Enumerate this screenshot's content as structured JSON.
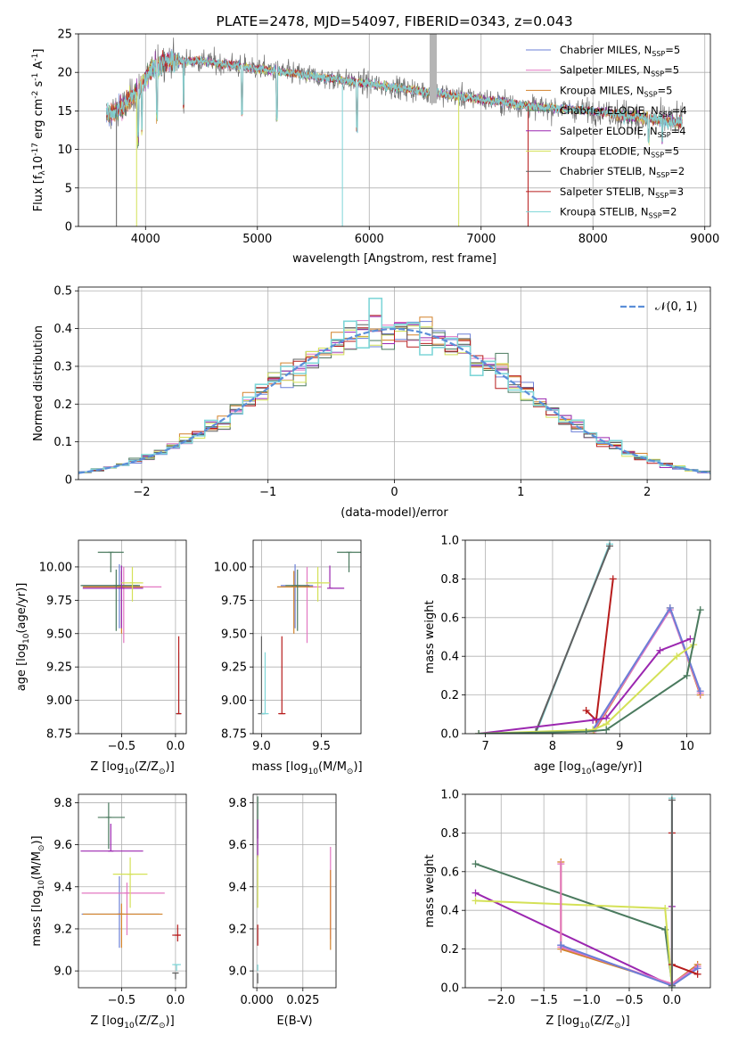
{
  "series_names": [
    "Chabrier MILES, N",
    "Salpeter MILES, N",
    "Kroupa MILES, N",
    "Chabrier ELODIE, N",
    "Salpeter ELODIE, N",
    "Kroupa ELODIE, N",
    "Chabrier STELIB, N",
    "Salpeter STELIB, N",
    "Kroupa STELIB, N"
  ],
  "legend_sub": "SSP",
  "legend_n": [
    "=5",
    "=5",
    "=5",
    "=4",
    "=4",
    "=5",
    "=2",
    "=3",
    "=2"
  ],
  "colors": [
    "#6b7fd7",
    "#e377c2",
    "#d2822b",
    "#4a7a5e",
    "#9b27b0",
    "#d4e157",
    "#606060",
    "#b71c1c",
    "#7fd6d8"
  ],
  "chart_data": [
    {
      "id": "spectrum",
      "type": "line",
      "title": "PLATE=2478, MJD=54097, FIBERID=0343, z=0.043",
      "xlabel": "wavelength [Angstrom, rest frame]",
      "ylabel_parts": [
        "Flux [f",
        "λ",
        "10",
        "-17",
        " erg cm",
        "-2",
        " s",
        "-1",
        " A",
        "-1",
        "]"
      ],
      "xlim": [
        3400,
        9050
      ],
      "ylim": [
        0,
        25
      ],
      "xticks": [
        4000,
        5000,
        6000,
        7000,
        8000,
        9000
      ],
      "yticks": [
        0,
        5,
        10,
        15,
        20,
        25
      ],
      "continuum": [
        [
          3650,
          14.5
        ],
        [
          3800,
          15.5
        ],
        [
          3950,
          18
        ],
        [
          4050,
          20.5
        ],
        [
          4200,
          21.5
        ],
        [
          4500,
          21.5
        ],
        [
          5000,
          20.5
        ],
        [
          5500,
          19.5
        ],
        [
          6000,
          18.5
        ],
        [
          6500,
          17.5
        ],
        [
          7000,
          16.5
        ],
        [
          7500,
          15.5
        ],
        [
          8000,
          15
        ],
        [
          8500,
          14
        ],
        [
          8800,
          13.5
        ]
      ],
      "dropouts": [
        {
          "x": 3740,
          "series": 6
        },
        {
          "x": 3920,
          "series": 5
        },
        {
          "x": 5760,
          "series": 8
        },
        {
          "x": 6800,
          "series": 5
        },
        {
          "x": 7420,
          "series": 7
        }
      ]
    },
    {
      "id": "residuals",
      "type": "histogram",
      "xlabel": "(data-model)/error",
      "ylabel": "Normed distribution",
      "xlim": [
        -2.5,
        2.5
      ],
      "ylim": [
        0,
        0.51
      ],
      "xticks": [
        -2,
        -1,
        0,
        1,
        2
      ],
      "yticks": [
        0,
        0.1,
        0.2,
        0.3,
        0.4,
        0.5
      ],
      "legend_gauss": "𝒩(0, 1)",
      "bin_width": 0.1
    },
    {
      "id": "age-vs-z",
      "type": "errorbar",
      "xlabel": "Z [log",
      "xlabel_sub": "10",
      "xlabel_rest": "(Z/Z",
      "xlabel_end": ")]",
      "ylabel": "age  [log",
      "ylabel_sub": "10",
      "ylabel_rest": "(age/yr)]",
      "xlim": [
        -0.9,
        0.1
      ],
      "ylim": [
        8.75,
        10.2
      ],
      "xticks": [
        -0.5,
        0.0
      ],
      "yticks": [
        8.75,
        9.0,
        9.25,
        9.5,
        9.75,
        10.0
      ],
      "points": [
        {
          "s": 0,
          "x": -0.52,
          "y": 9.86,
          "xerr": [
            0.35,
            0.17
          ],
          "yerr": [
            0.32,
            0.16
          ]
        },
        {
          "s": 1,
          "x": -0.48,
          "y": 9.85,
          "xerr": [
            0.37,
            0.35
          ],
          "yerr": [
            0.42,
            0.15
          ]
        },
        {
          "s": 2,
          "x": -0.5,
          "y": 9.85,
          "xerr": [
            0.36,
            0.2
          ],
          "yerr": [
            0.35,
            0.12
          ]
        },
        {
          "s": 3,
          "x": -0.55,
          "y": 9.86,
          "xerr": [
            0.33,
            0.22
          ],
          "yerr": [
            0.34,
            0.12
          ]
        },
        {
          "s": 4,
          "x": -0.5,
          "y": 9.84,
          "xerr": [
            0.36,
            0.2
          ],
          "yerr": [
            0.3,
            0.17
          ]
        },
        {
          "s": 5,
          "x": -0.4,
          "y": 9.88,
          "xerr": [
            0.1,
            0.1
          ],
          "yerr": [
            0.14,
            0.12
          ]
        },
        {
          "s": 3,
          "x": -0.6,
          "y": 10.11,
          "xerr": [
            0.12,
            0.12
          ],
          "yerr": [
            0.15,
            0.0
          ]
        },
        {
          "s": 8,
          "x": 0.03,
          "y": 8.9,
          "xerr": [
            0.03,
            0.02
          ],
          "yerr": [
            0.0,
            0.46
          ]
        },
        {
          "s": 7,
          "x": 0.03,
          "y": 8.9,
          "xerr": [
            0.02,
            0.02
          ],
          "yerr": [
            0.0,
            0.58
          ]
        }
      ]
    },
    {
      "id": "age-vs-mass",
      "type": "errorbar",
      "xlabel": "mass [log",
      "xlabel_sub": "10",
      "xlabel_rest": "(M/M",
      "xlabel_end": ")]",
      "xlim": [
        8.93,
        9.83
      ],
      "ylim": [
        8.75,
        10.2
      ],
      "xticks": [
        9.0,
        9.5
      ],
      "yticks": [
        8.75,
        9.0,
        9.25,
        9.5,
        9.75,
        10.0
      ],
      "points": [
        {
          "s": 0,
          "x": 9.28,
          "y": 9.86,
          "xerr": [
            0.12,
            0.15
          ],
          "yerr": [
            0.32,
            0.16
          ]
        },
        {
          "s": 1,
          "x": 9.38,
          "y": 9.85,
          "xerr": [
            0.12,
            0.12
          ],
          "yerr": [
            0.42,
            0.15
          ]
        },
        {
          "s": 2,
          "x": 9.27,
          "y": 9.85,
          "xerr": [
            0.14,
            0.16
          ],
          "yerr": [
            0.35,
            0.12
          ]
        },
        {
          "s": 3,
          "x": 9.3,
          "y": 9.86,
          "xerr": [
            0.1,
            0.1
          ],
          "yerr": [
            0.34,
            0.12
          ]
        },
        {
          "s": 4,
          "x": 9.57,
          "y": 9.84,
          "xerr": [
            0.0,
            0.12
          ],
          "yerr": [
            0.0,
            0.17
          ]
        },
        {
          "s": 5,
          "x": 9.47,
          "y": 9.88,
          "xerr": [
            0.1,
            0.1
          ],
          "yerr": [
            0.14,
            0.12
          ]
        },
        {
          "s": 3,
          "x": 9.73,
          "y": 10.11,
          "xerr": [
            0.1,
            0.1
          ],
          "yerr": [
            0.15,
            0.0
          ]
        },
        {
          "s": 6,
          "x": 9.0,
          "y": 8.9,
          "xerr": [
            0.03,
            0.03
          ],
          "yerr": [
            0.0,
            0.58
          ]
        },
        {
          "s": 8,
          "x": 9.03,
          "y": 8.9,
          "xerr": [
            0.03,
            0.03
          ],
          "yerr": [
            0.0,
            0.46
          ]
        },
        {
          "s": 7,
          "x": 9.17,
          "y": 8.9,
          "xerr": [
            0.03,
            0.03
          ],
          "yerr": [
            0.0,
            0.58
          ]
        }
      ]
    },
    {
      "id": "weight-vs-age",
      "type": "line",
      "xlabel": "age  [log",
      "xlabel_sub": "10",
      "xlabel_rest": "(age/yr)]",
      "ylabel": "mass weight",
      "xlim": [
        6.7,
        10.35
      ],
      "ylim": [
        0,
        1.0
      ],
      "xticks": [
        7,
        8,
        9,
        10
      ],
      "yticks": [
        0.0,
        0.2,
        0.4,
        0.6,
        0.8,
        1.0
      ],
      "lines": [
        {
          "s": 8,
          "x": [
            7.75,
            8.85
          ],
          "y": [
            0.0,
            0.98
          ]
        },
        {
          "s": 6,
          "x": [
            7.75,
            8.85
          ],
          "y": [
            0.01,
            0.97
          ]
        },
        {
          "s": 7,
          "x": [
            8.5,
            8.65,
            8.9
          ],
          "y": [
            0.12,
            0.07,
            0.8
          ]
        },
        {
          "s": 2,
          "x": [
            8.6,
            9.75,
            10.2
          ],
          "y": [
            0.0,
            0.65,
            0.2
          ]
        },
        {
          "s": 1,
          "x": [
            8.6,
            9.75,
            10.2
          ],
          "y": [
            0.01,
            0.64,
            0.21
          ]
        },
        {
          "s": 0,
          "x": [
            8.6,
            9.75,
            10.2
          ],
          "y": [
            0.02,
            0.65,
            0.22
          ]
        },
        {
          "s": 4,
          "x": [
            6.9,
            8.6,
            8.8,
            9.6,
            10.05
          ],
          "y": [
            0.0,
            0.07,
            0.08,
            0.43,
            0.49
          ]
        },
        {
          "s": 5,
          "x": [
            6.9,
            8.6,
            8.8,
            9.85,
            10.1
          ],
          "y": [
            0.0,
            0.02,
            0.05,
            0.4,
            0.46
          ]
        },
        {
          "s": 3,
          "x": [
            6.9,
            8.5,
            8.8,
            10.0,
            10.2
          ],
          "y": [
            0.0,
            0.01,
            0.02,
            0.3,
            0.64
          ]
        }
      ]
    },
    {
      "id": "mass-vs-z",
      "type": "errorbar",
      "xlabel": "Z [log",
      "xlabel_sub": "10",
      "xlabel_rest": "(Z/Z",
      "xlabel_end": ")]",
      "ylabel": "mass [log",
      "ylabel_sub": "10",
      "ylabel_rest": "(M/M",
      "ylabel_end": ")]",
      "xlim": [
        -0.9,
        0.1
      ],
      "ylim": [
        8.92,
        9.84
      ],
      "xticks": [
        -0.5,
        0.0
      ],
      "yticks": [
        9.0,
        9.2,
        9.4,
        9.6,
        9.8
      ],
      "points": [
        {
          "s": 0,
          "x": -0.52,
          "y": 9.27,
          "xerr": [
            0.35,
            0.37
          ],
          "yerr": [
            0.16,
            0.18
          ]
        },
        {
          "s": 1,
          "x": -0.45,
          "y": 9.37,
          "xerr": [
            0.42,
            0.35
          ],
          "yerr": [
            0.2,
            0.05
          ]
        },
        {
          "s": 2,
          "x": -0.5,
          "y": 9.27,
          "xerr": [
            0.36,
            0.38
          ],
          "yerr": [
            0.16,
            0.05
          ]
        },
        {
          "s": 3,
          "x": -0.62,
          "y": 9.73,
          "xerr": [
            0.1,
            0.15
          ],
          "yerr": [
            0.15,
            0.07
          ]
        },
        {
          "s": 4,
          "x": -0.6,
          "y": 9.57,
          "xerr": [
            0.28,
            0.3
          ],
          "yerr": [
            0.0,
            0.13
          ]
        },
        {
          "s": 5,
          "x": -0.42,
          "y": 9.46,
          "xerr": [
            0.16,
            0.16
          ],
          "yerr": [
            0.16,
            0.08
          ]
        },
        {
          "s": 7,
          "x": 0.02,
          "y": 9.17,
          "xerr": [
            0.05,
            0.03
          ],
          "yerr": [
            0.03,
            0.05
          ]
        },
        {
          "s": 8,
          "x": 0.01,
          "y": 9.03,
          "xerr": [
            0.04,
            0.04
          ],
          "yerr": [
            0.03,
            0.0
          ]
        },
        {
          "s": 6,
          "x": 0.0,
          "y": 8.99,
          "xerr": [
            0.03,
            0.03
          ],
          "yerr": [
            0.03,
            0.0
          ]
        }
      ]
    },
    {
      "id": "mass-vs-ebv",
      "type": "errorbar",
      "xlabel": "E(B-V)",
      "xlim": [
        -0.002,
        0.043
      ],
      "ylim": [
        8.92,
        9.84
      ],
      "xticks": [
        0.0,
        0.025
      ],
      "yticks": [
        9.0,
        9.2,
        9.4,
        9.6,
        9.8
      ],
      "points": [
        {
          "s": 3,
          "x": 0.0005,
          "y": 9.73,
          "xerr": [
            0,
            0
          ],
          "yerr": [
            0.1,
            0.1
          ]
        },
        {
          "s": 4,
          "x": 0.0005,
          "y": 9.62,
          "xerr": [
            0,
            0
          ],
          "yerr": [
            0.08,
            0.1
          ]
        },
        {
          "s": 5,
          "x": 0.0005,
          "y": 9.4,
          "xerr": [
            0,
            0
          ],
          "yerr": [
            0.1,
            0.15
          ]
        },
        {
          "s": 7,
          "x": 0.0005,
          "y": 9.17,
          "xerr": [
            0,
            0
          ],
          "yerr": [
            0.05,
            0.05
          ]
        },
        {
          "s": 8,
          "x": 0.0005,
          "y": 9.03,
          "xerr": [
            0,
            0
          ],
          "yerr": [
            0.03,
            0.0
          ]
        },
        {
          "s": 6,
          "x": 0.0005,
          "y": 8.99,
          "xerr": [
            0,
            0
          ],
          "yerr": [
            0.05,
            0.0
          ]
        },
        {
          "s": 1,
          "x": 0.04,
          "y": 9.37,
          "xerr": [
            0,
            0
          ],
          "yerr": [
            0.22,
            0.22
          ]
        },
        {
          "s": 2,
          "x": 0.04,
          "y": 9.3,
          "xerr": [
            0,
            0
          ],
          "yerr": [
            0.2,
            0.18
          ]
        }
      ]
    },
    {
      "id": "weight-vs-z",
      "type": "line",
      "xlabel": "Z [log",
      "xlabel_sub": "10",
      "xlabel_rest": "(Z/Z",
      "xlabel_end": ")]",
      "ylabel": "mass weight",
      "xlim": [
        -2.42,
        0.45
      ],
      "ylim": [
        0,
        1.0
      ],
      "xticks": [
        -2.0,
        -1.5,
        -1.0,
        -0.5,
        0.0
      ],
      "yticks": [
        0.0,
        0.2,
        0.4,
        0.6,
        0.8,
        1.0
      ],
      "lines": [
        {
          "s": 3,
          "x": [
            -2.3,
            -0.08,
            0.0
          ],
          "y": [
            0.64,
            0.3,
            0.02
          ]
        },
        {
          "s": 4,
          "x": [
            -2.3,
            0.0,
            0.0
          ],
          "y": [
            0.49,
            0.01,
            0.42
          ]
        },
        {
          "s": 5,
          "x": [
            -2.3,
            -0.08,
            0.0
          ],
          "y": [
            0.45,
            0.41,
            0.0
          ]
        },
        {
          "s": 2,
          "x": [
            -1.3,
            -1.3,
            0.0,
            0.3
          ],
          "y": [
            0.65,
            0.2,
            0.02,
            0.12
          ]
        },
        {
          "s": 1,
          "x": [
            -1.3,
            -1.3,
            0.0,
            0.3
          ],
          "y": [
            0.64,
            0.21,
            0.02,
            0.11
          ]
        },
        {
          "s": 0,
          "x": [
            -1.3,
            -1.3,
            0.0,
            0.3
          ],
          "y": [
            0.22,
            0.22,
            0.01,
            0.1
          ]
        },
        {
          "s": 7,
          "x": [
            0.0,
            0.0,
            0.3
          ],
          "y": [
            0.8,
            0.12,
            0.07
          ]
        },
        {
          "s": 8,
          "x": [
            0.0,
            0.0
          ],
          "y": [
            0.98,
            0.0
          ]
        },
        {
          "s": 6,
          "x": [
            0.0,
            0.0
          ],
          "y": [
            0.97,
            0.01
          ]
        }
      ]
    }
  ]
}
